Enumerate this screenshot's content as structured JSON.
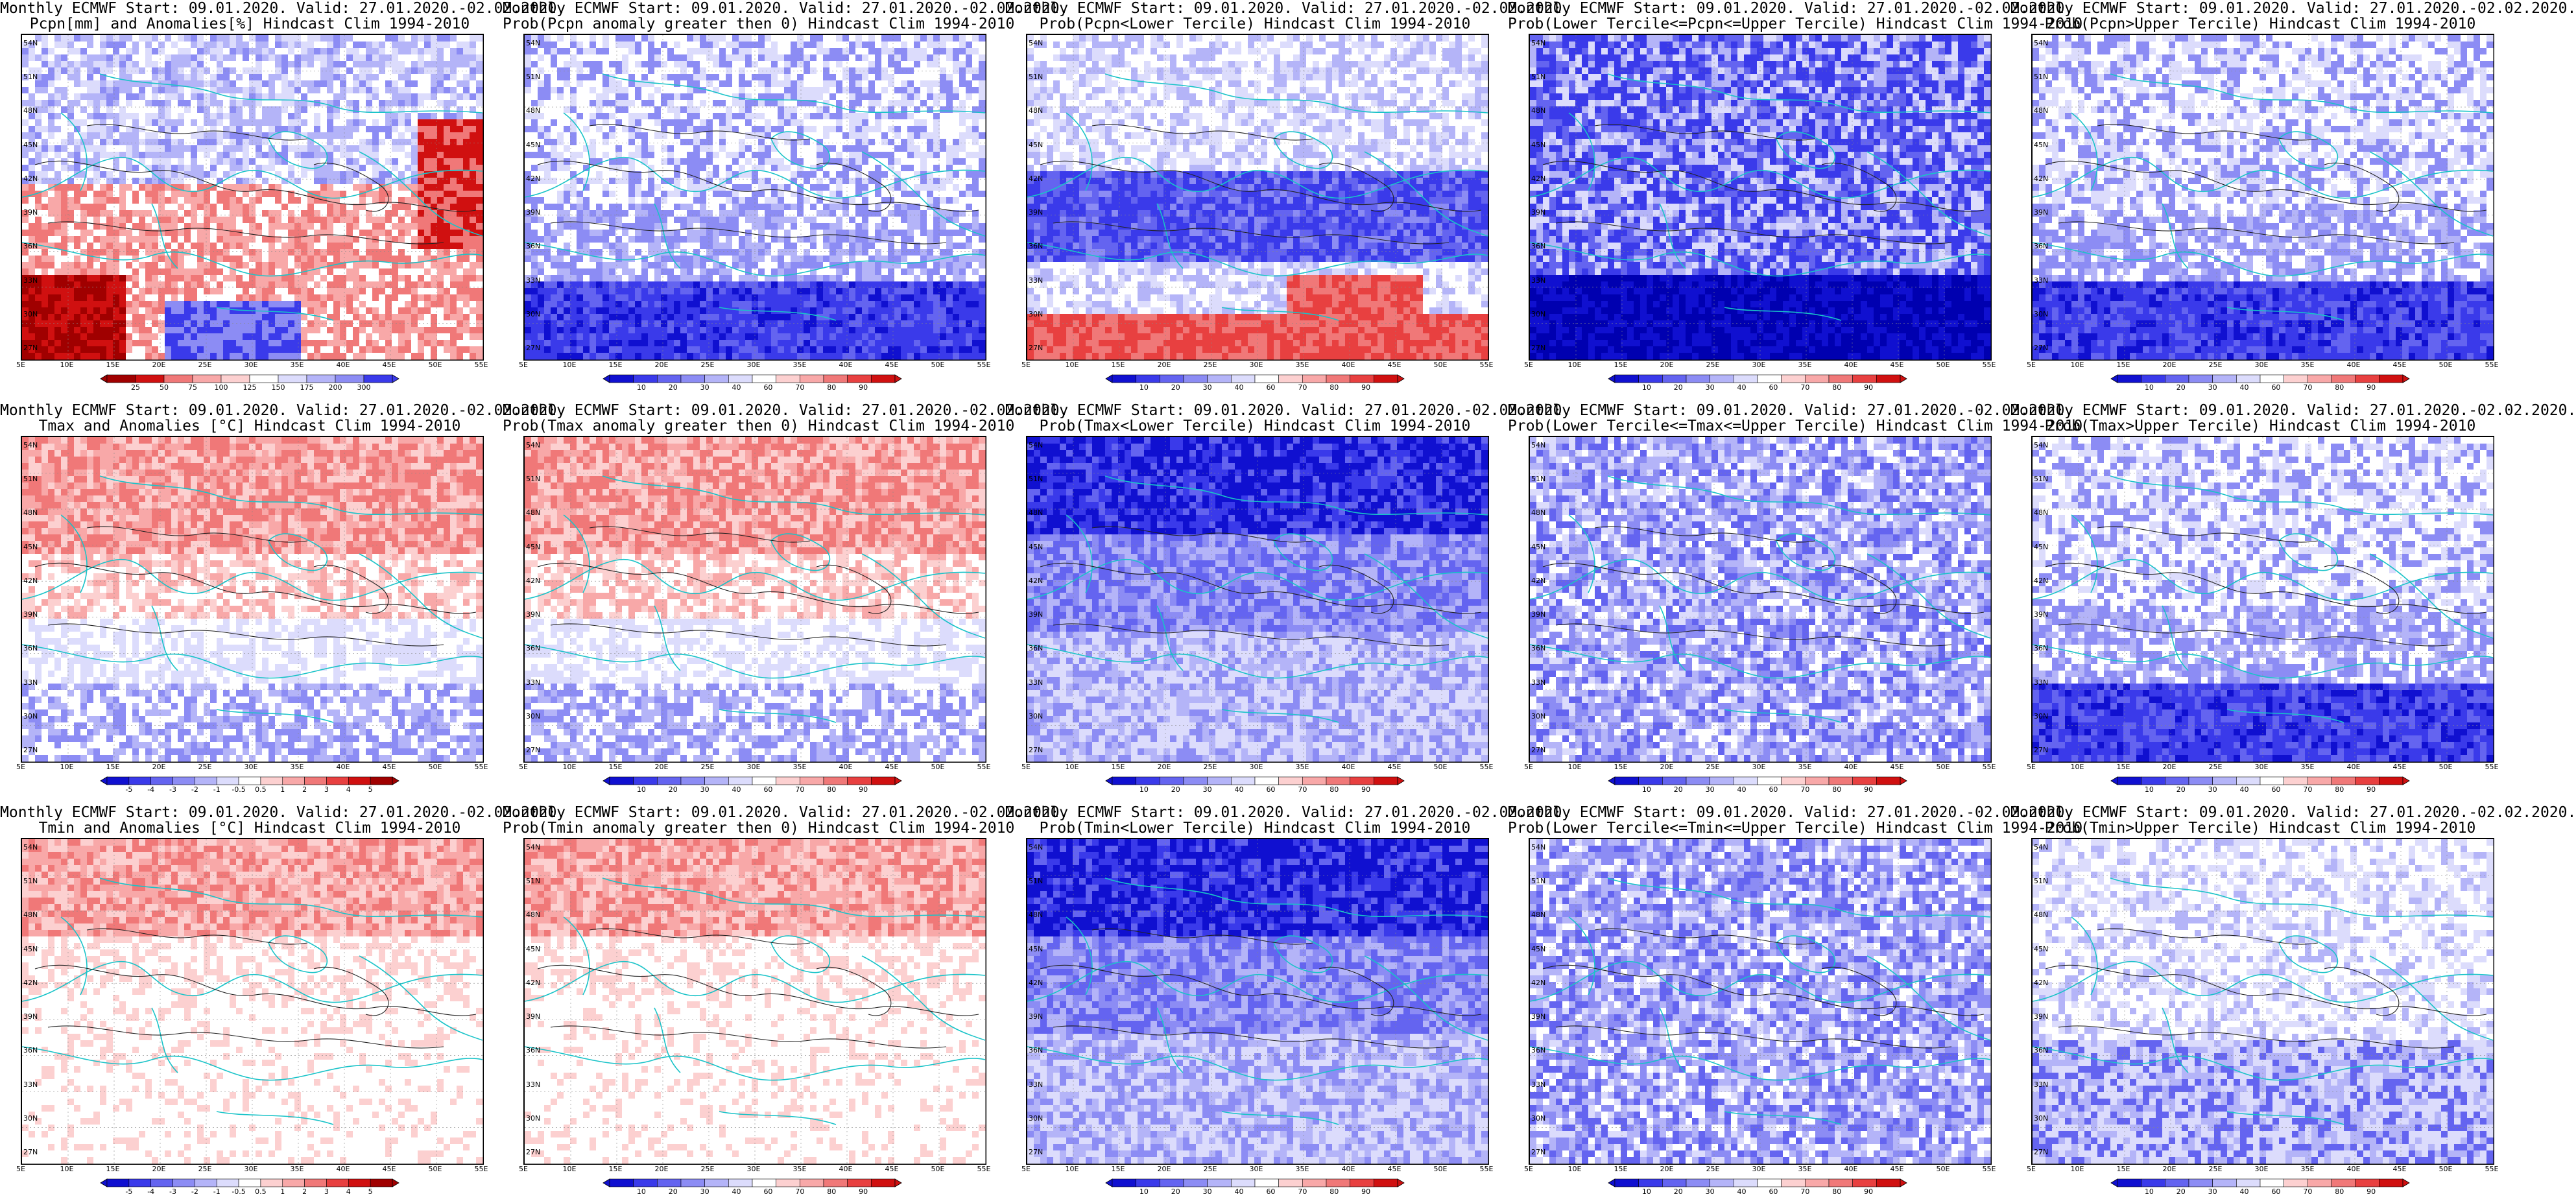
{
  "lat_labels": [
    "54N",
    "51N",
    "48N",
    "45N",
    "42N",
    "39N",
    "36N",
    "33N",
    "30N",
    "27N"
  ],
  "lon_labels": [
    "5E",
    "10E",
    "15E",
    "20E",
    "25E",
    "30E",
    "35E",
    "40E",
    "45E",
    "50E",
    "55E"
  ],
  "panels": [
    {
      "id": "pcpn-anom",
      "title1": "Monthly ECMWF Start: 09.01.2020. Valid: 27.01.2020.-02.02.2020.",
      "title2": "Pcpn[mm] and Anomalies[%] Hindcast Clim 1994-2010",
      "scale": "precip",
      "cbar_labels": [
        "25",
        "50",
        "75",
        "100",
        "125",
        "150",
        "175",
        "200",
        "300"
      ],
      "pattern": "pcpn_anom"
    },
    {
      "id": "pcpn-prob-pos",
      "title1": "Monthly ECMWF Start: 09.01.2020. Valid: 27.01.2020.-02.02.2020.",
      "title2": "Prob(Pcpn anomaly greater then 0) Hindcast Clim 1994-2010",
      "scale": "prob",
      "cbar_labels": [
        "10",
        "20",
        "30",
        "40",
        "60",
        "70",
        "80",
        "90"
      ],
      "pattern": "south_blue"
    },
    {
      "id": "pcpn-prob-lower",
      "title1": "Monthly ECMWF Start: 09.01.2020. Valid: 27.01.2020.-02.02.2020.",
      "title2": "Prob(Pcpn<Lower Tercile) Hindcast Clim 1994-2010",
      "scale": "prob",
      "cbar_labels": [
        "10",
        "20",
        "30",
        "40",
        "60",
        "70",
        "80",
        "90"
      ],
      "pattern": "south_red"
    },
    {
      "id": "pcpn-prob-normal",
      "title1": "Monthly ECMWF Start: 09.01.2020. Valid: 27.01.2020.-02.02.2020.",
      "title2": "Prob(Lower Tercile<=Pcpn<=Upper Tercile) Hindcast Clim 1994-2010",
      "scale": "prob",
      "cbar_labels": [
        "10",
        "20",
        "30",
        "40",
        "60",
        "70",
        "80",
        "90"
      ],
      "pattern": "deep_blue"
    },
    {
      "id": "pcpn-prob-upper",
      "title1": "Monthly ECMWF Start: 09.01.2020. Valid: 27.01.2020.-02.02.2020.",
      "title2": "Prob(Pcpn>Upper Tercile) Hindcast Clim 1994-2010",
      "scale": "prob",
      "cbar_labels": [
        "10",
        "20",
        "30",
        "40",
        "60",
        "70",
        "80",
        "90"
      ],
      "pattern": "south_blue"
    },
    {
      "id": "tmax-anom",
      "title1": "Monthly ECMWF Start: 09.01.2020. Valid: 27.01.2020.-02.02.2020.",
      "title2": "Tmax and Anomalies [°C] Hindcast Clim 1994-2010",
      "scale": "temp",
      "cbar_labels": [
        "-5",
        "-4",
        "-3",
        "-2",
        "-1",
        "-0.5",
        "0.5",
        "1",
        "2",
        "3",
        "4",
        "5"
      ],
      "pattern": "north_red"
    },
    {
      "id": "tmax-prob-pos",
      "title1": "Monthly ECMWF Start: 09.01.2020. Valid: 27.01.2020.-02.02.2020.",
      "title2": "Prob(Tmax anomaly greater then 0) Hindcast Clim 1994-2010",
      "scale": "prob",
      "cbar_labels": [
        "10",
        "20",
        "30",
        "40",
        "60",
        "70",
        "80",
        "90"
      ],
      "pattern": "north_red"
    },
    {
      "id": "tmax-prob-lower",
      "title1": "Monthly ECMWF Start: 09.01.2020. Valid: 27.01.2020.-02.02.2020.",
      "title2": "Prob(Tmax<Lower Tercile) Hindcast Clim 1994-2010",
      "scale": "prob",
      "cbar_labels": [
        "10",
        "20",
        "30",
        "40",
        "60",
        "70",
        "80",
        "90"
      ],
      "pattern": "north_blue"
    },
    {
      "id": "tmax-prob-normal",
      "title1": "Monthly ECMWF Start: 09.01.2020. Valid: 27.01.2020.-02.02.2020.",
      "title2": "Prob(Lower Tercile<=Tmax<=Upper Tercile) Hindcast Clim 1994-2010",
      "scale": "prob",
      "cbar_labels": [
        "10",
        "20",
        "30",
        "40",
        "60",
        "70",
        "80",
        "90"
      ],
      "pattern": "mixed_blue"
    },
    {
      "id": "tmax-prob-upper",
      "title1": "Monthly ECMWF Start: 09.01.2020. Valid: 27.01.2020.-02.02.2020.",
      "title2": "Prob(Tmax>Upper Tercile) Hindcast Clim 1994-2010",
      "scale": "prob",
      "cbar_labels": [
        "10",
        "20",
        "30",
        "40",
        "60",
        "70",
        "80",
        "90"
      ],
      "pattern": "south_blue"
    },
    {
      "id": "tmin-anom",
      "title1": "Monthly ECMWF Start: 09.01.2020. Valid: 27.01.2020.-02.02.2020.",
      "title2": "Tmin and Anomalies [°C] Hindcast Clim 1994-2010",
      "scale": "temp",
      "cbar_labels": [
        "-5",
        "-4",
        "-3",
        "-2",
        "-1",
        "-0.5",
        "0.5",
        "1",
        "2",
        "3",
        "4",
        "5"
      ],
      "pattern": "north_red_light"
    },
    {
      "id": "tmin-prob-pos",
      "title1": "Monthly ECMWF Start: 09.01.2020. Valid: 27.01.2020.-02.02.2020.",
      "title2": "Prob(Tmin anomaly greater then 0) Hindcast Clim 1994-2010",
      "scale": "prob",
      "cbar_labels": [
        "10",
        "20",
        "30",
        "40",
        "60",
        "70",
        "80",
        "90"
      ],
      "pattern": "north_red_light"
    },
    {
      "id": "tmin-prob-lower",
      "title1": "Monthly ECMWF Start: 09.01.2020. Valid: 27.01.2020.-02.02.2020.",
      "title2": "Prob(Tmin<Lower Tercile) Hindcast Clim 1994-2010",
      "scale": "prob",
      "cbar_labels": [
        "10",
        "20",
        "30",
        "40",
        "60",
        "70",
        "80",
        "90"
      ],
      "pattern": "north_blue"
    },
    {
      "id": "tmin-prob-normal",
      "title1": "Monthly ECMWF Start: 09.01.2020. Valid: 27.01.2020.-02.02.2020.",
      "title2": "Prob(Lower Tercile<=Tmin<=Upper Tercile) Hindcast Clim 1994-2010",
      "scale": "prob",
      "cbar_labels": [
        "10",
        "20",
        "30",
        "40",
        "60",
        "70",
        "80",
        "90"
      ],
      "pattern": "mixed_blue"
    },
    {
      "id": "tmin-prob-upper",
      "title1": "Monthly ECMWF Start: 09.01.2020. Valid: 27.01.2020.-02.02.2020.",
      "title2": "Prob(Tmin>Upper Tercile) Hindcast Clim 1994-2010",
      "scale": "prob",
      "cbar_labels": [
        "10",
        "20",
        "30",
        "40",
        "60",
        "70",
        "80",
        "90"
      ],
      "pattern": "light_blue"
    }
  ],
  "colors": {
    "prob_scale": [
      "#1010d0",
      "#3a3aea",
      "#6464f0",
      "#8c8cf4",
      "#b4b4f8",
      "#dcdcfc",
      "#ffffff",
      "#fcd0d0",
      "#f8a8a8",
      "#f07878",
      "#e84040",
      "#d01010"
    ],
    "temp_scale": [
      "#1010d0",
      "#3a3aea",
      "#6464f0",
      "#8c8cf4",
      "#b4b4f8",
      "#dcdcfc",
      "#ffffff",
      "#fcd0d0",
      "#f8a8a8",
      "#f07878",
      "#e84040",
      "#d01010",
      "#a00000"
    ],
    "precip_scale": [
      "#a00000",
      "#d01010",
      "#f07878",
      "#f8a8a8",
      "#fcd0d0",
      "#ffffff",
      "#dcdcfc",
      "#b4b4f8",
      "#8c8cf4",
      "#3a3aea"
    ],
    "coast": "#19c3c8",
    "contour": "#222222"
  }
}
